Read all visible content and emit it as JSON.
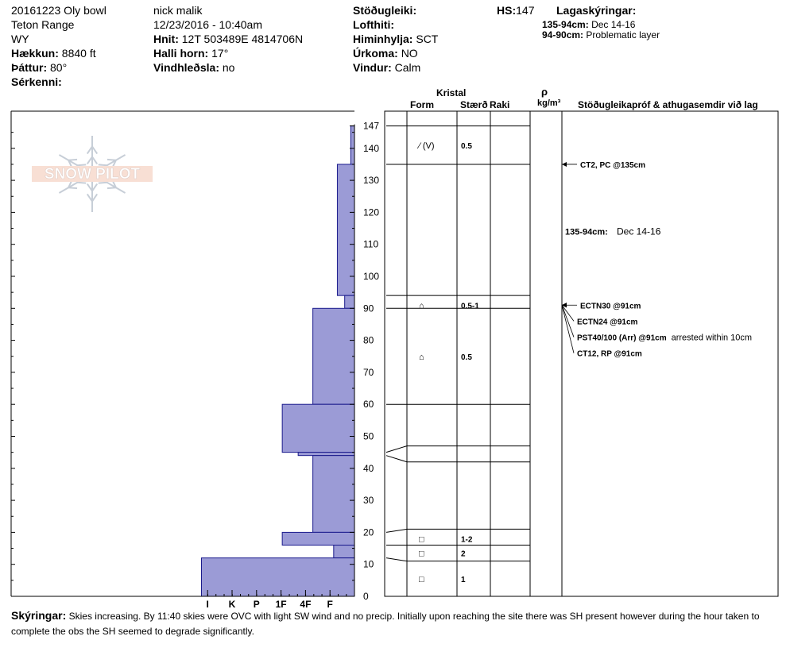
{
  "header": {
    "col1": [
      {
        "label": "",
        "value": "20161223 Oly bowl"
      },
      {
        "label": "",
        "value": "Teton Range"
      },
      {
        "label": "",
        "value": "WY"
      },
      {
        "label": "Hækkun:",
        "value": "8840 ft"
      },
      {
        "label": "Þáttur:",
        "value": "80°"
      },
      {
        "label": "Sérkenni:",
        "value": ""
      }
    ],
    "col2": [
      {
        "label": "",
        "value": "nick malik"
      },
      {
        "label": "",
        "value": "12/23/2016 - 10:40am"
      },
      {
        "label": "Hnit:",
        "value": "12T 503489E 4814706N"
      },
      {
        "label": "Halli horn:",
        "value": "17°"
      },
      {
        "label": "Vindhleðsla:",
        "value": "no"
      }
    ],
    "col3": [
      {
        "label": "Stöðugleiki:",
        "value": ""
      },
      {
        "label": "Lofthiti:",
        "value": ""
      },
      {
        "label": "Himinhylja:",
        "value": "SCT"
      },
      {
        "label": "Úrkoma:",
        "value": "NO"
      },
      {
        "label": "Vindur:",
        "value": "Calm"
      }
    ],
    "hs_label": "HS:",
    "hs_value": "147",
    "legend_title": "Lagaskýringar:",
    "legend": [
      {
        "range": "135-94cm:",
        "text": "Dec 14-16"
      },
      {
        "range": "94-90cm:",
        "text": "Problematic layer"
      }
    ]
  },
  "columns": {
    "kristal": "Kristal",
    "form": "Form",
    "staerd": "Stærð",
    "raki": "Raki",
    "rho": "ρ",
    "density_unit": "kg/m³",
    "tests": "Stöðugleikapróf & athugasemdir við lag"
  },
  "logo_text": "SNOW PILOT",
  "chart_data": {
    "type": "bar",
    "orientation": "horizontal",
    "title": "",
    "hs": 147,
    "ylim": [
      0,
      147
    ],
    "y_ticks": [
      0,
      10,
      20,
      30,
      40,
      50,
      60,
      70,
      80,
      90,
      100,
      110,
      120,
      130,
      140,
      147
    ],
    "x_ticks": [
      "I",
      "K",
      "P",
      "1F",
      "4F",
      "F"
    ],
    "hardness_values": {
      "F": 1,
      "4F": 2,
      "1F": 3,
      "P": 4,
      "K": 5,
      "I": 6
    },
    "grid": false,
    "layers": [
      {
        "top": 147,
        "bottom": 135,
        "hardness": 0.15
      },
      {
        "top": 135,
        "bottom": 94,
        "hardness": 0.7
      },
      {
        "top": 94,
        "bottom": 90,
        "hardness": 0.4
      },
      {
        "top": 90,
        "bottom": 60,
        "hardness": 1.7
      },
      {
        "top": 60,
        "bottom": 45,
        "hardness": 2.95
      },
      {
        "top": 45,
        "bottom": 44,
        "hardness": 2.3
      },
      {
        "top": 44,
        "bottom": 20,
        "hardness": 1.7
      },
      {
        "top": 20,
        "bottom": 16,
        "hardness": 2.95
      },
      {
        "top": 16,
        "bottom": 12,
        "hardness": 0.85
      },
      {
        "top": 12,
        "bottom": 0,
        "hardness": 6.25
      }
    ],
    "layer_boundaries": [
      147,
      135,
      94,
      90,
      60,
      47,
      42,
      21,
      16,
      11
    ],
    "crystals": [
      {
        "depth": 141,
        "form": "⁄ (V)",
        "size": "0.5"
      },
      {
        "depth": 91,
        "form": "⌂",
        "size": "0.5-1"
      },
      {
        "depth": 75,
        "form": "⌂",
        "size": "0.5"
      },
      {
        "depth": 18,
        "form": "□",
        "size": "1-2"
      },
      {
        "depth": 13.5,
        "form": "□",
        "size": "2"
      },
      {
        "depth": 5.5,
        "form": "□",
        "size": "1"
      }
    ],
    "tests": [
      {
        "depth": 135,
        "label_depth": 135,
        "label": "CT2, PC @135cm",
        "note": ""
      },
      {
        "depth": 91,
        "label_depth": 91,
        "label": "ECTN30 @91cm",
        "note": ""
      },
      {
        "depth": 91,
        "label_depth": 86,
        "label": "ECTN24 @91cm",
        "note": ""
      },
      {
        "depth": 91,
        "label_depth": 81,
        "label": "PST40/100 (Arr) @91cm",
        "note": "arrested within 10cm"
      },
      {
        "depth": 91,
        "label_depth": 76,
        "label": "CT12, RP @91cm",
        "note": ""
      }
    ],
    "layer_comments": [
      {
        "depth": 114,
        "range": "135-94cm:",
        "text": "Dec 14-16"
      }
    ]
  },
  "comments": {
    "label": "Skýringar:",
    "text": "Skies increasing.  By 11:40 skies were OVC with light SW wind and no precip.  Initially upon reaching the site there was SH present however during the hour taken to complete the obs the SH seemed to degrade significantly."
  },
  "colors": {
    "fill": "#9b9bd6",
    "stroke": "#1a1a8c",
    "line": "#000000"
  }
}
